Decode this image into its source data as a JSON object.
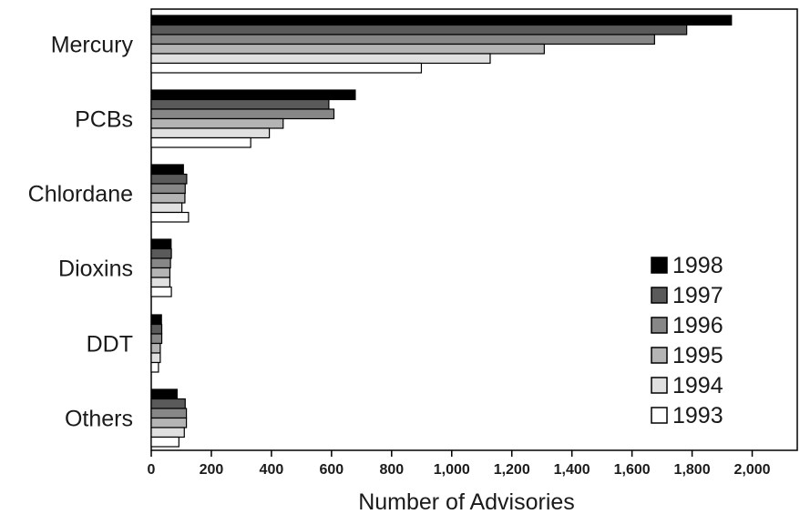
{
  "chart_data": {
    "type": "bar",
    "orientation": "horizontal",
    "categories": [
      "Mercury",
      "PCBs",
      "Chlordane",
      "Dioxins",
      "DDT",
      "Others"
    ],
    "series": [
      {
        "name": "1998",
        "color": "#000000",
        "values": [
          1931,
          679,
          107,
          66,
          34,
          86
        ]
      },
      {
        "name": "1997",
        "color": "#5a5a5a",
        "values": [
          1782,
          591,
          118,
          67,
          35,
          113
        ]
      },
      {
        "name": "1996",
        "color": "#878787",
        "values": [
          1675,
          608,
          113,
          64,
          35,
          117
        ]
      },
      {
        "name": "1995",
        "color": "#b4b4b4",
        "values": [
          1308,
          439,
          112,
          62,
          30,
          117
        ]
      },
      {
        "name": "1994",
        "color": "#e0e0e0",
        "values": [
          1128,
          393,
          102,
          62,
          30,
          110
        ]
      },
      {
        "name": "1993",
        "color": "#ffffff",
        "values": [
          899,
          331,
          124,
          67,
          24,
          92
        ]
      }
    ],
    "xlabel": "Number of Advisories",
    "xlim": [
      0,
      2150
    ],
    "xticks": [
      0,
      200,
      400,
      600,
      800,
      1000,
      1200,
      1400,
      1600,
      1800,
      2000
    ],
    "xtick_labels": [
      "0",
      "200",
      "400",
      "600",
      "800",
      "1,000",
      "1,200",
      "1,400",
      "1,600",
      "1,800",
      "2,000"
    ],
    "grid": false,
    "legend_position": "right"
  }
}
